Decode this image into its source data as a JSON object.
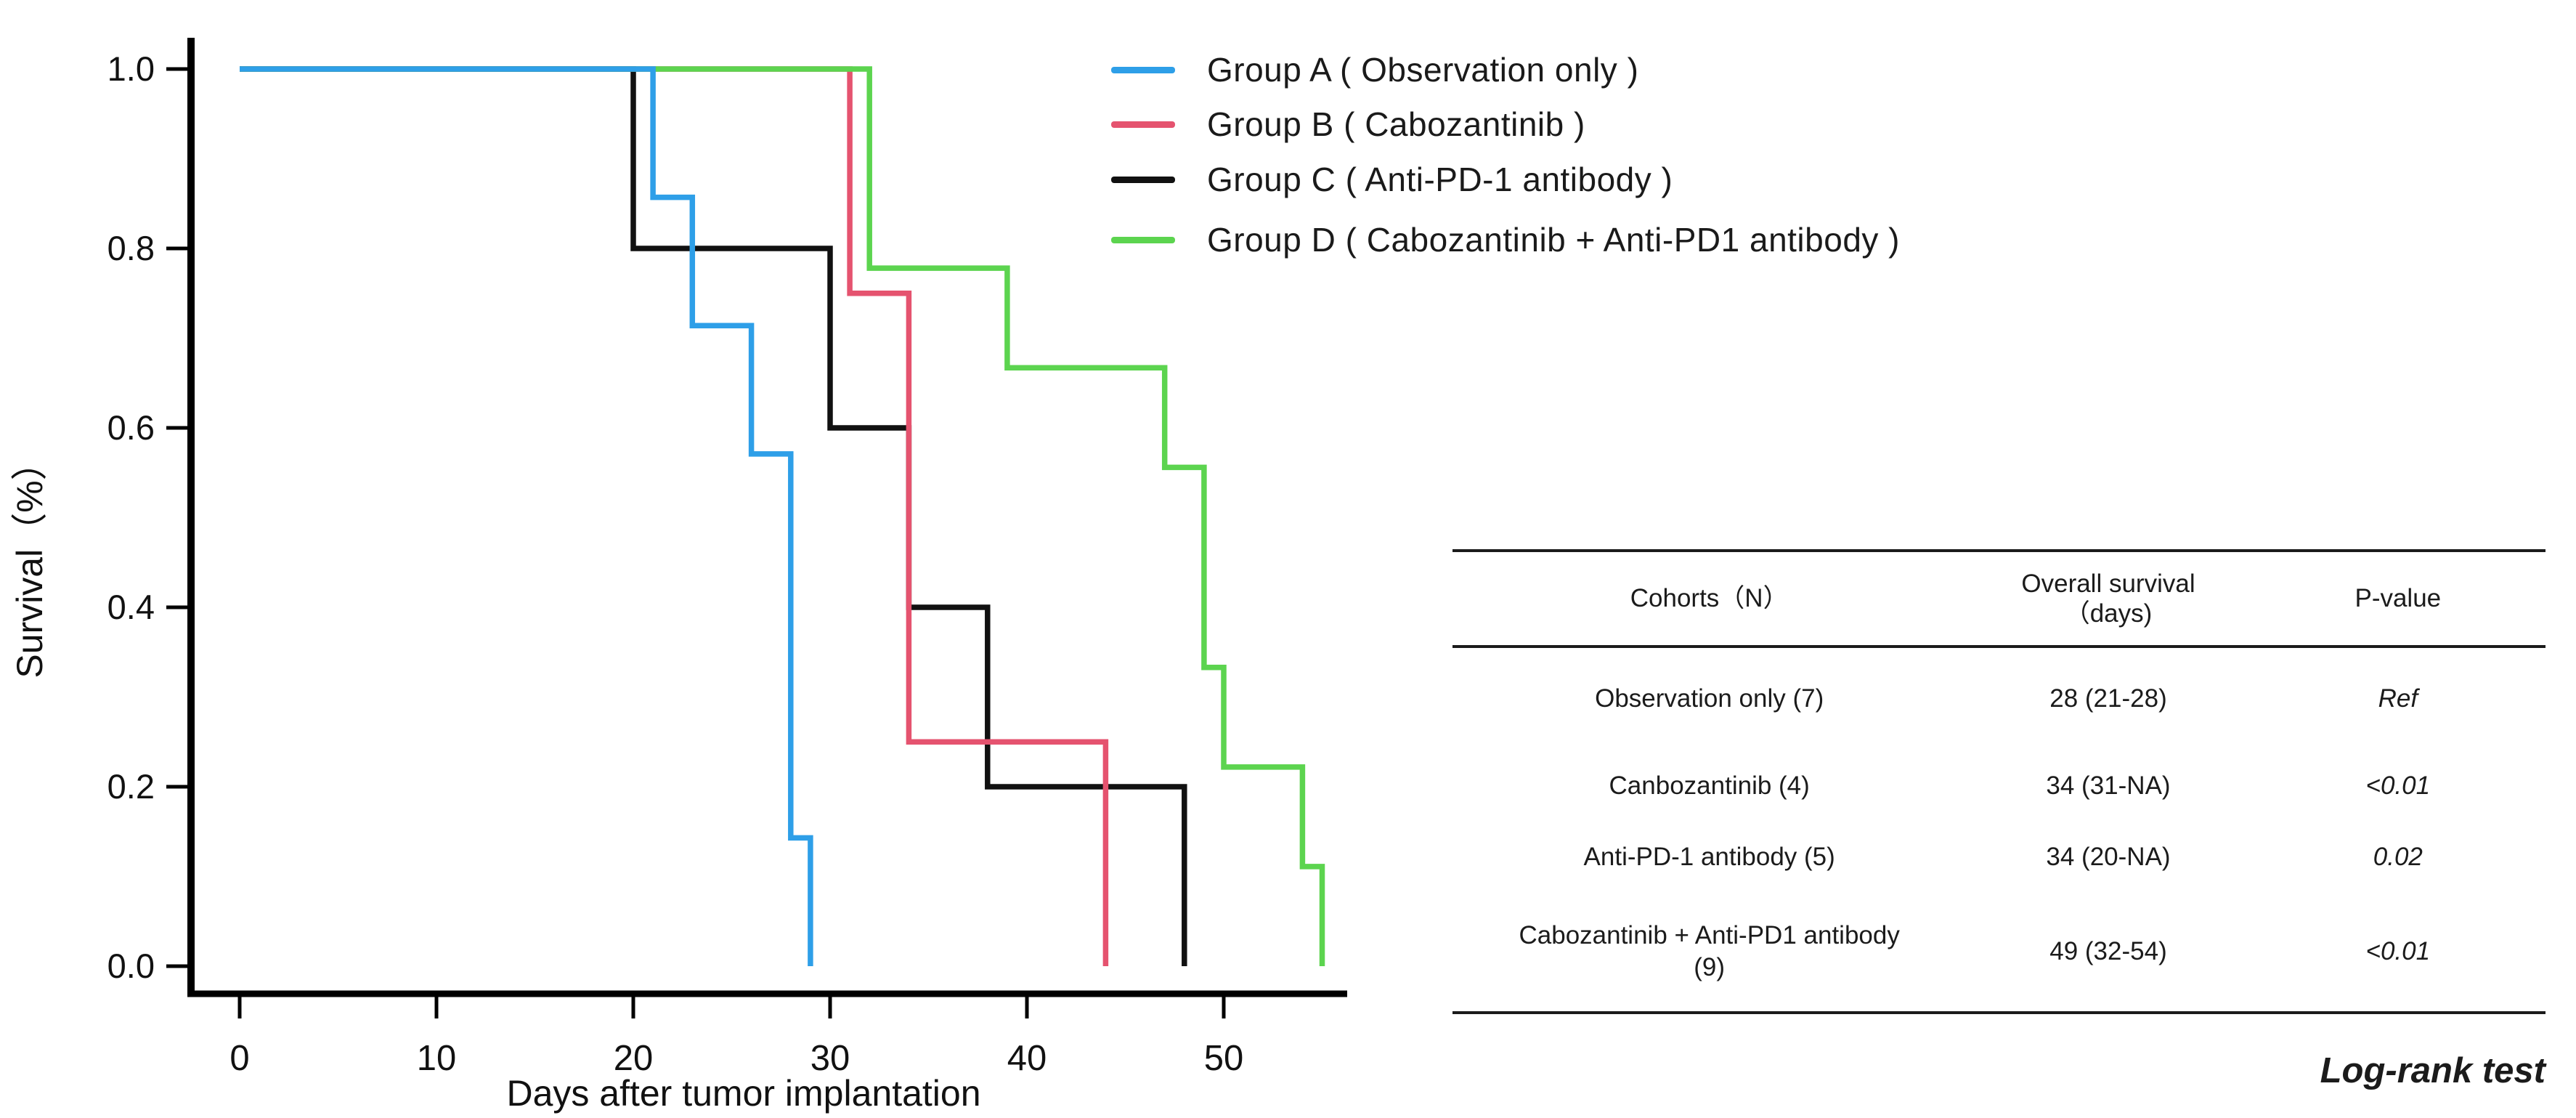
{
  "chart_data": {
    "type": "line",
    "subtype": "kaplan-meier-step",
    "title": "",
    "xlabel": "Days after tumor implantation",
    "ylabel": "Survival（%）",
    "xlim": [
      0,
      57
    ],
    "ylim": [
      0,
      1
    ],
    "grid": false,
    "legend_position": "top-right",
    "xticks": [
      0,
      10,
      20,
      30,
      40,
      50
    ],
    "yticks": [
      {
        "label": "0.0",
        "v": 0.0
      },
      {
        "label": "0.2",
        "v": 0.2
      },
      {
        "label": "0.4",
        "v": 0.4
      },
      {
        "label": "0.6",
        "v": 0.6
      },
      {
        "label": "0.8",
        "v": 0.8
      },
      {
        "label": "1.0",
        "v": 1.0
      }
    ],
    "series": [
      {
        "name": "Group A ( Observation only )",
        "color": "#2E9FE8",
        "n": 7,
        "start": [
          0,
          1.0
        ],
        "drops": [
          [
            21,
            0.857
          ],
          [
            23,
            0.714
          ],
          [
            26,
            0.571
          ],
          [
            28,
            0.143
          ],
          [
            29,
            0
          ]
        ]
      },
      {
        "name": "Group B ( Cabozantinib )",
        "color": "#E5536F",
        "n": 4,
        "start": [
          0,
          1.0
        ],
        "drops": [
          [
            31,
            0.75
          ],
          [
            34,
            0.25
          ],
          [
            44,
            0
          ]
        ]
      },
      {
        "name": "Group C ( Anti-PD-1 antibody )",
        "color": "#111111",
        "n": 5,
        "start": [
          0,
          1.0
        ],
        "drops": [
          [
            20,
            0.8
          ],
          [
            30,
            0.6
          ],
          [
            34,
            0.4
          ],
          [
            38,
            0.2
          ],
          [
            48,
            0
          ]
        ]
      },
      {
        "name": "Group D ( Cabozantinib + Anti-PD1 antibody )",
        "color": "#5CD44F",
        "n": 9,
        "start": [
          0,
          1.0
        ],
        "drops": [
          [
            32,
            0.778
          ],
          [
            39,
            0.667
          ],
          [
            47,
            0.556
          ],
          [
            49,
            0.333
          ],
          [
            50,
            0.222
          ],
          [
            54,
            0.111
          ],
          [
            55,
            0
          ]
        ]
      }
    ],
    "draw_order": [
      2,
      1,
      3,
      0
    ]
  },
  "table": {
    "headers": {
      "cohort": "Cohorts（N）",
      "os_line1": "Overall survival",
      "os_line2": "（days)",
      "pvalue": "P-value"
    },
    "rows": [
      {
        "cohort": "Observation only (7)",
        "os": "28 (21-28)",
        "p": "Ref"
      },
      {
        "cohort": "Canbozantinib (4)",
        "os": "34 (31-NA)",
        "p": "<0.01"
      },
      {
        "cohort": "Anti-PD-1 antibody (5)",
        "os": "34 (20-NA)",
        "p": "0.02"
      },
      {
        "cohort": "Cabozantinib + Anti-PD1 antibody\n(9)",
        "os": "49 (32-54)",
        "p": "<0.01"
      }
    ],
    "footer": "Log-rank test"
  }
}
